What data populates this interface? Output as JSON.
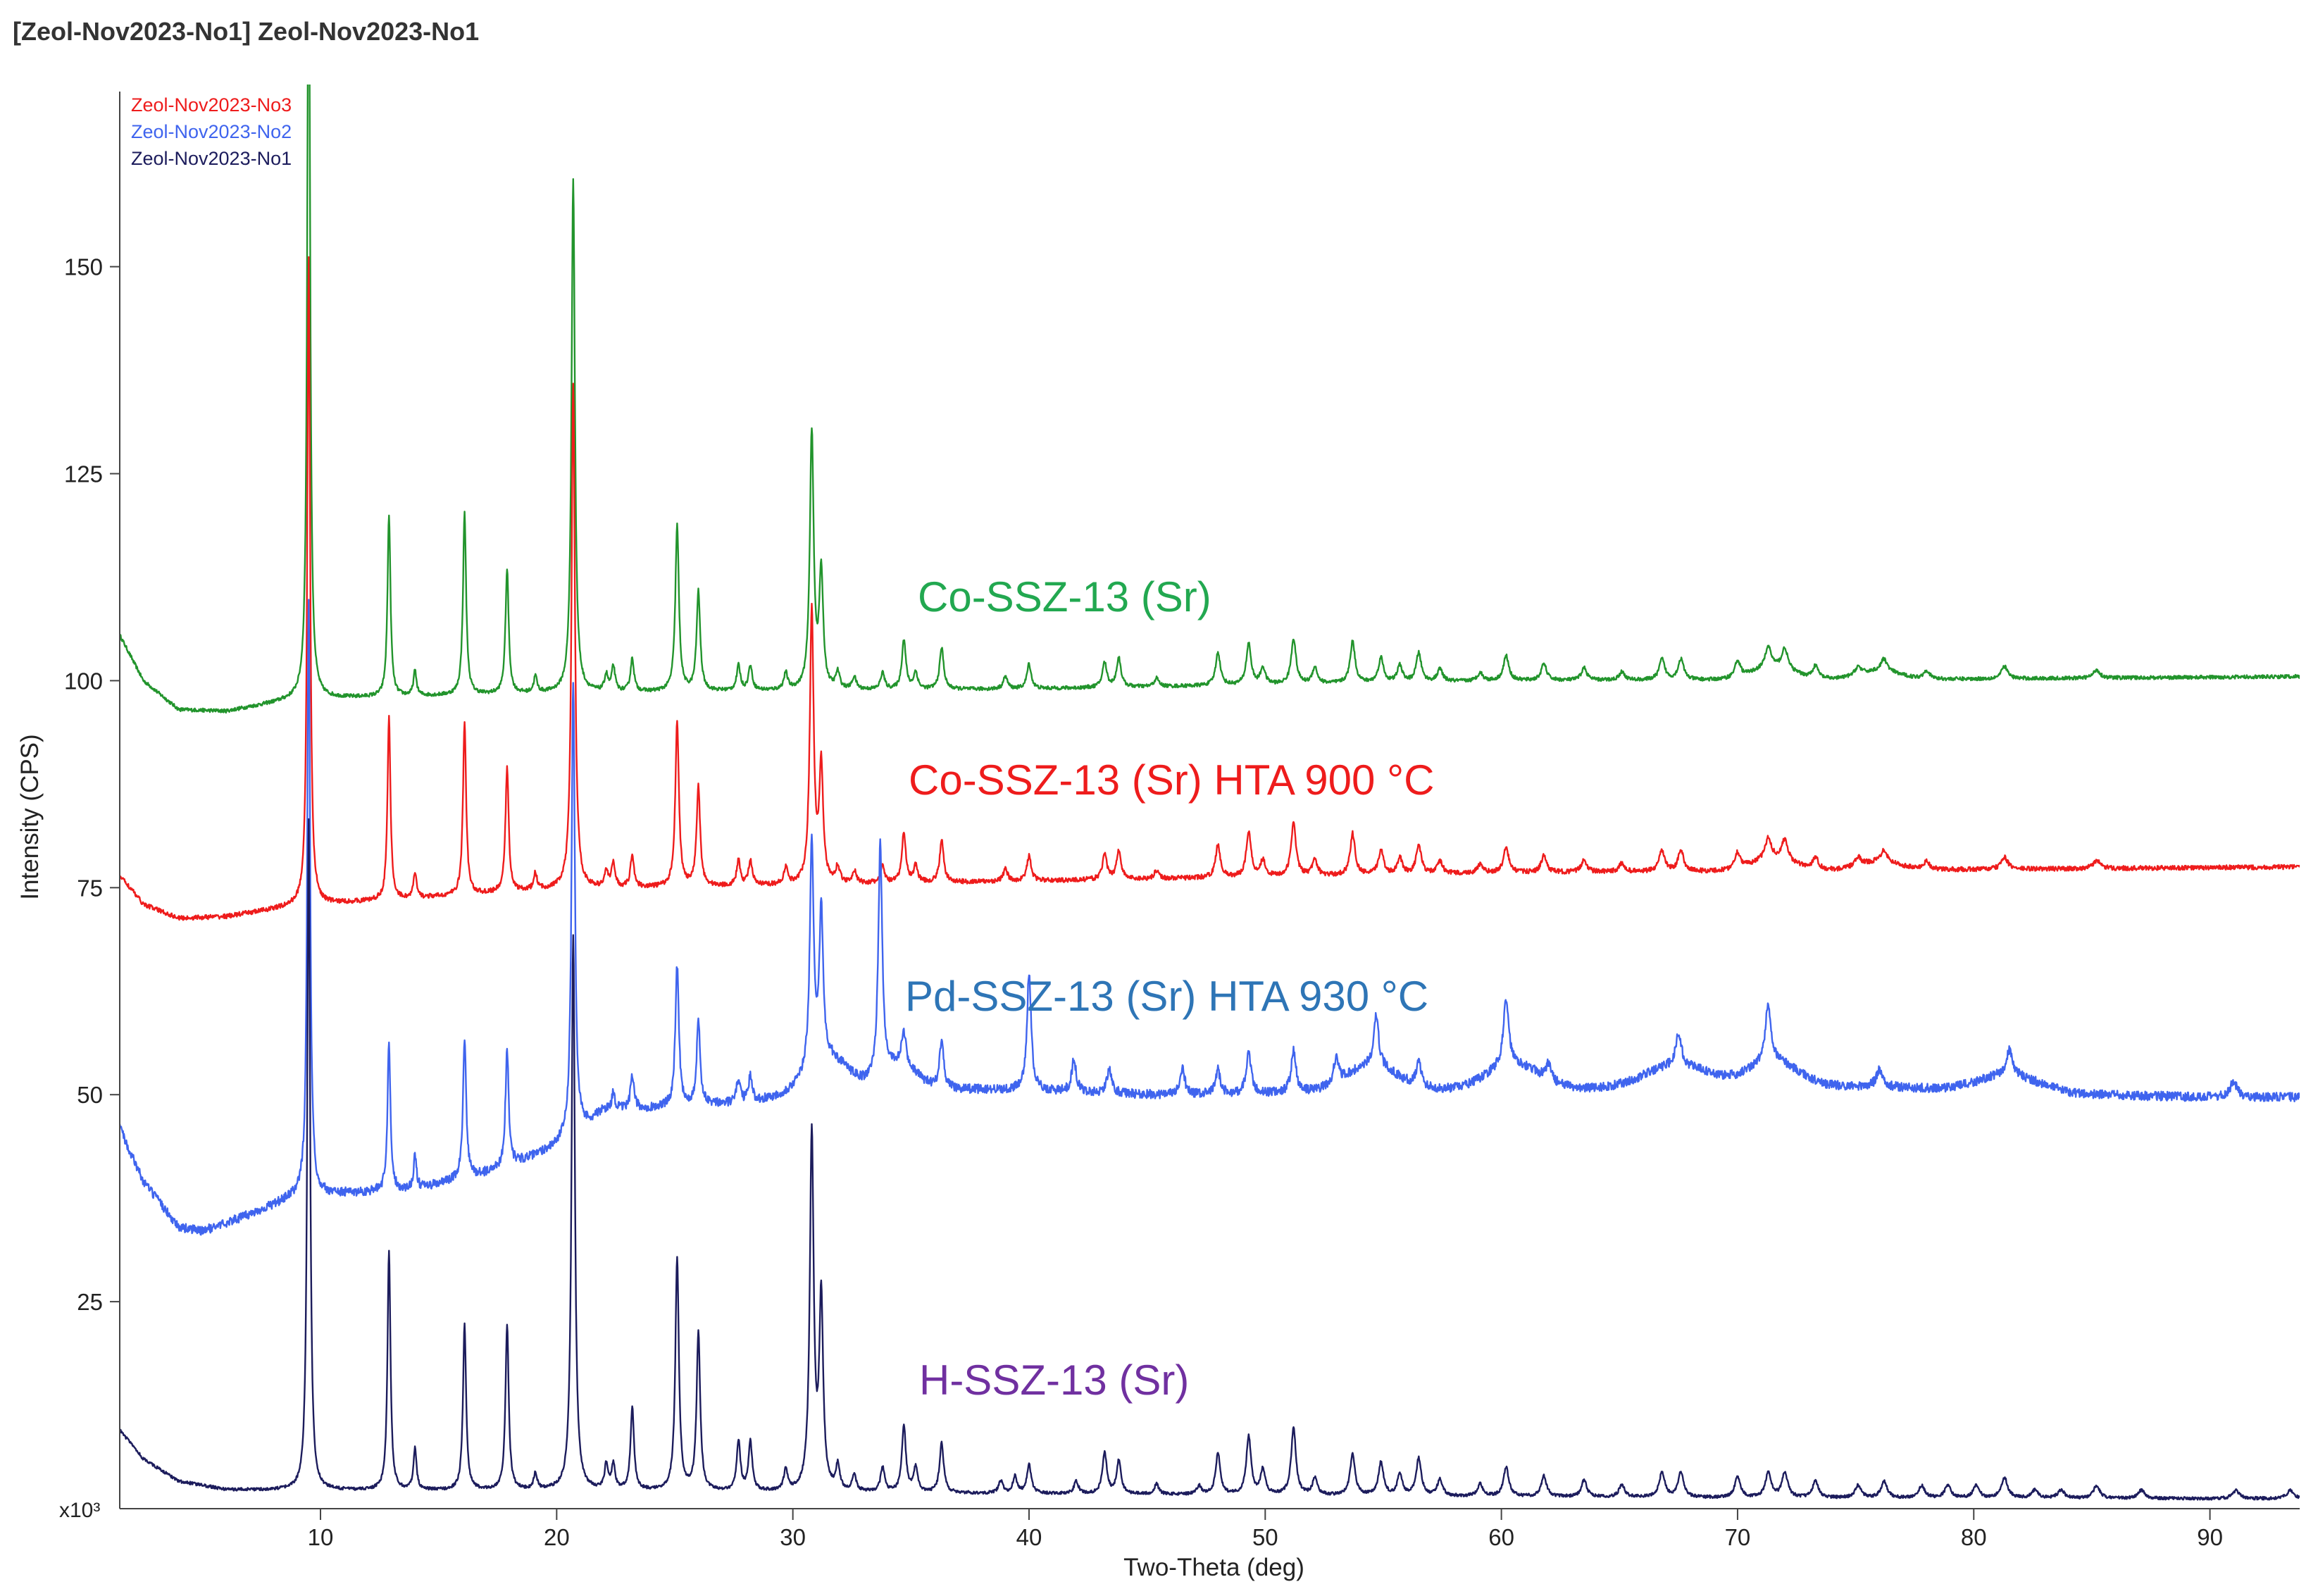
{
  "header": {
    "title": "[Zeol-Nov2023-No1] Zeol-Nov2023-No1"
  },
  "chart_data": {
    "type": "line",
    "xlabel": "Two-Theta (deg)",
    "ylabel": "Intensity (CPS)",
    "y_multiplier_label": "x10³",
    "xlim": [
      1.5,
      93.8
    ],
    "ylim": [
      0,
      172
    ],
    "grid": false,
    "legend_position": "top-left",
    "x_ticks": [
      10,
      20,
      30,
      40,
      50,
      60,
      70,
      80,
      90
    ],
    "y_ticks": [
      25,
      50,
      75,
      100,
      125,
      150
    ],
    "legend": [
      {
        "label": "Zeol-Nov2023-No3",
        "color": "#ee1c1c"
      },
      {
        "label": "Zeol-Nov2023-No2",
        "color": "#3f64ee"
      },
      {
        "label": "Zeol-Nov2023-No1",
        "color": "#1c1c5c"
      }
    ],
    "series": [
      {
        "name": "Zeol-Nov2023-No1",
        "annotation": "H-SSZ-13 (Sr)",
        "color": "#1c1c5c",
        "annotation_color": "#7030a0",
        "offset": 0,
        "baseline": [
          [
            1.5,
            9.5
          ],
          [
            2.5,
            6.0
          ],
          [
            4,
            3.3
          ],
          [
            6,
            2.3
          ],
          [
            9,
            2.2
          ],
          [
            20,
            2.2
          ],
          [
            40,
            1.8
          ],
          [
            70,
            1.3
          ],
          [
            93.8,
            1.2
          ]
        ],
        "peaks": [
          [
            9.5,
            81
          ],
          [
            12.9,
            29
          ],
          [
            14.0,
            5
          ],
          [
            16.1,
            20
          ],
          [
            17.9,
            20
          ],
          [
            19.1,
            2
          ],
          [
            20.7,
            67
          ],
          [
            22.1,
            3
          ],
          [
            22.4,
            3
          ],
          [
            23.2,
            10
          ],
          [
            25.1,
            28
          ],
          [
            26.0,
            19
          ],
          [
            27.7,
            6
          ],
          [
            28.2,
            6
          ],
          [
            29.7,
            2.5
          ],
          [
            30.8,
            43
          ],
          [
            31.2,
            23
          ],
          [
            31.9,
            3
          ],
          [
            32.6,
            2
          ],
          [
            33.8,
            3
          ],
          [
            34.7,
            8
          ],
          [
            35.2,
            3
          ],
          [
            36.3,
            6
          ],
          [
            38.8,
            1.5
          ],
          [
            39.4,
            2
          ],
          [
            40.0,
            3.5
          ],
          [
            42.0,
            1.5
          ],
          [
            43.2,
            5
          ],
          [
            43.8,
            4
          ],
          [
            45.4,
            1.2
          ],
          [
            47.2,
            1
          ],
          [
            48.0,
            5
          ],
          [
            49.3,
            7
          ],
          [
            49.9,
            3
          ],
          [
            51.2,
            8
          ],
          [
            52.1,
            2
          ],
          [
            53.7,
            5
          ],
          [
            54.9,
            4
          ],
          [
            55.7,
            2.5
          ],
          [
            56.5,
            4.5
          ],
          [
            57.4,
            2
          ],
          [
            59.1,
            1.5
          ],
          [
            60.2,
            3.5
          ],
          [
            61.8,
            2.5
          ],
          [
            63.5,
            2
          ],
          [
            65.1,
            1.5
          ],
          [
            66.8,
            3
          ],
          [
            67.6,
            3
          ],
          [
            70.0,
            2.5
          ],
          [
            71.3,
            3
          ],
          [
            72.0,
            3
          ],
          [
            73.3,
            2
          ],
          [
            75.1,
            1.5
          ],
          [
            76.2,
            2
          ],
          [
            77.8,
            1.5
          ],
          [
            78.9,
            1.5
          ],
          [
            80.1,
            1.5
          ],
          [
            81.3,
            2.5
          ],
          [
            82.6,
            1
          ],
          [
            83.7,
            1
          ],
          [
            85.2,
            1.5
          ],
          [
            87.1,
            1
          ],
          [
            91.1,
            1
          ],
          [
            93.4,
            1
          ]
        ]
      },
      {
        "name": "Zeol-Nov2023-No2",
        "annotation": "Pd-SSZ-13 (Sr) HTA 930 °C",
        "color": "#3f64ee",
        "annotation_color": "#2e75b6",
        "offset": 32.5,
        "baseline": [
          [
            1.5,
            13.5
          ],
          [
            2.5,
            7.0
          ],
          [
            4,
            1.5
          ],
          [
            5,
            1.0
          ],
          [
            7,
            3.0
          ],
          [
            9.2,
            5.5
          ],
          [
            10.5,
            5.5
          ],
          [
            14,
            6.0
          ],
          [
            17,
            8.0
          ],
          [
            19,
            10.0
          ],
          [
            20.5,
            12.0
          ],
          [
            22,
            15.5
          ],
          [
            25,
            16.0
          ],
          [
            28,
            16.5
          ],
          [
            30,
            17.5
          ],
          [
            33,
            18.0
          ],
          [
            36,
            18.2
          ],
          [
            40,
            18.0
          ],
          [
            45,
            17.5
          ],
          [
            48,
            17.5
          ],
          [
            52,
            17.8
          ],
          [
            55,
            18.0
          ],
          [
            60,
            18.2
          ],
          [
            64,
            18.2
          ],
          [
            68,
            18.0
          ],
          [
            72,
            18.5
          ],
          [
            76,
            18.5
          ],
          [
            80,
            18.0
          ],
          [
            85,
            17.5
          ],
          [
            90,
            17.2
          ],
          [
            93.8,
            17.2
          ]
        ],
        "peaks": [
          [
            9.5,
            72
          ],
          [
            12.9,
            18
          ],
          [
            14.0,
            4
          ],
          [
            16.1,
            17
          ],
          [
            17.9,
            14
          ],
          [
            20.7,
            55
          ],
          [
            22.4,
            2
          ],
          [
            23.2,
            4
          ],
          [
            25.1,
            17
          ],
          [
            26.0,
            10
          ],
          [
            27.7,
            3
          ],
          [
            28.2,
            3
          ],
          [
            30.8,
            27
          ],
          [
            31.2,
            18
          ],
          [
            33.7,
            28
          ],
          [
            34.7,
            4
          ],
          [
            36.3,
            6
          ],
          [
            40.0,
            14
          ],
          [
            41.9,
            4
          ],
          [
            43.4,
            3
          ],
          [
            46.5,
            3
          ],
          [
            48.0,
            3
          ],
          [
            49.3,
            5
          ],
          [
            51.2,
            5
          ],
          [
            53.0,
            3
          ],
          [
            54.7,
            6
          ],
          [
            56.5,
            3
          ],
          [
            60.2,
            8
          ],
          [
            62.0,
            2
          ],
          [
            67.5,
            4
          ],
          [
            71.3,
            7
          ],
          [
            76.0,
            2
          ],
          [
            81.5,
            3
          ],
          [
            91.0,
            2
          ]
        ],
        "broad": [
          [
            31.5,
            1.2,
            4
          ],
          [
            34.5,
            1.0,
            3
          ],
          [
            54.5,
            1.5,
            3
          ],
          [
            60.5,
            1.5,
            3
          ],
          [
            67.5,
            2.0,
            3
          ],
          [
            71.5,
            1.5,
            3
          ],
          [
            81.5,
            1.8,
            2
          ]
        ]
      },
      {
        "name": "Zeol-Nov2023-No3",
        "annotation": "Co-SSZ-13 (Sr) HTA 900 °C",
        "color": "#ee1c1c",
        "annotation_color": "#ee1c1c",
        "offset": 70,
        "baseline": [
          [
            1.5,
            6.5
          ],
          [
            2.5,
            3.0
          ],
          [
            4,
            1.3
          ],
          [
            6,
            1.5
          ],
          [
            9,
            2.8
          ],
          [
            20,
            4.8
          ],
          [
            30,
            5.3
          ],
          [
            40,
            5.8
          ],
          [
            60,
            6.8
          ],
          [
            80,
            7.2
          ],
          [
            93.8,
            7.5
          ]
        ],
        "peaks": [
          [
            9.5,
            78
          ],
          [
            12.9,
            22
          ],
          [
            14.0,
            3
          ],
          [
            16.1,
            21
          ],
          [
            17.9,
            15
          ],
          [
            19.1,
            2
          ],
          [
            20.7,
            61
          ],
          [
            22.1,
            2
          ],
          [
            22.4,
            3
          ],
          [
            23.2,
            4
          ],
          [
            25.1,
            20
          ],
          [
            26.0,
            12
          ],
          [
            27.7,
            3
          ],
          [
            28.2,
            3
          ],
          [
            29.7,
            2
          ],
          [
            30.8,
            33
          ],
          [
            31.2,
            14
          ],
          [
            31.9,
            2
          ],
          [
            32.6,
            1.5
          ],
          [
            33.8,
            2
          ],
          [
            34.7,
            6
          ],
          [
            35.2,
            2
          ],
          [
            36.3,
            5
          ],
          [
            39.0,
            1.5
          ],
          [
            40.0,
            3
          ],
          [
            43.2,
            3
          ],
          [
            43.8,
            3.5
          ],
          [
            45.4,
            1
          ],
          [
            48.0,
            4
          ],
          [
            49.3,
            5.5
          ],
          [
            49.9,
            2
          ],
          [
            51.2,
            6.5
          ],
          [
            52.1,
            2
          ],
          [
            53.7,
            5
          ],
          [
            54.9,
            3
          ],
          [
            55.7,
            2
          ],
          [
            56.5,
            3.5
          ],
          [
            57.4,
            1.5
          ],
          [
            59.1,
            1
          ],
          [
            60.2,
            3
          ],
          [
            61.8,
            2
          ],
          [
            63.5,
            1.5
          ],
          [
            65.1,
            1
          ],
          [
            66.8,
            2.5
          ],
          [
            67.6,
            2.5
          ],
          [
            70.0,
            2
          ],
          [
            71.3,
            2.5
          ],
          [
            72.0,
            2.5
          ],
          [
            73.3,
            1.5
          ],
          [
            75.1,
            1
          ],
          [
            76.2,
            1.5
          ],
          [
            78.0,
            1
          ],
          [
            81.3,
            1.5
          ],
          [
            85.2,
            1
          ]
        ],
        "broad": [
          [
            71.5,
            1.2,
            1.5
          ],
          [
            76.0,
            1.2,
            1
          ]
        ]
      },
      {
        "name": "",
        "annotation": "Co-SSZ-13 (Sr)",
        "color": "#22942c",
        "annotation_color": "#22a850",
        "offset": 95,
        "baseline": [
          [
            1.5,
            10.5
          ],
          [
            2.5,
            5.0
          ],
          [
            4,
            1.5
          ],
          [
            6,
            1.3
          ],
          [
            9,
            2.8
          ],
          [
            20,
            3.5
          ],
          [
            30,
            3.8
          ],
          [
            40,
            4.0
          ],
          [
            60,
            5.0
          ],
          [
            80,
            5.2
          ],
          [
            93.8,
            5.5
          ]
        ],
        "peaks": [
          [
            9.5,
            98
          ],
          [
            12.9,
            22
          ],
          [
            14.0,
            3
          ],
          [
            16.1,
            22
          ],
          [
            17.9,
            15
          ],
          [
            19.1,
            2
          ],
          [
            20.7,
            62
          ],
          [
            22.1,
            2
          ],
          [
            22.4,
            3
          ],
          [
            23.2,
            4
          ],
          [
            25.1,
            20
          ],
          [
            26.0,
            12
          ],
          [
            27.7,
            3
          ],
          [
            28.2,
            3
          ],
          [
            29.7,
            2
          ],
          [
            30.8,
            31
          ],
          [
            31.2,
            14
          ],
          [
            31.9,
            2
          ],
          [
            32.6,
            1.5
          ],
          [
            33.8,
            2
          ],
          [
            34.7,
            6
          ],
          [
            35.2,
            2
          ],
          [
            36.3,
            5
          ],
          [
            39.0,
            1.5
          ],
          [
            40.0,
            3
          ],
          [
            43.2,
            3
          ],
          [
            43.8,
            3.5
          ],
          [
            45.4,
            1
          ],
          [
            48.0,
            4
          ],
          [
            49.3,
            5
          ],
          [
            49.9,
            2
          ],
          [
            51.2,
            5.5
          ],
          [
            52.1,
            2
          ],
          [
            53.7,
            5
          ],
          [
            54.9,
            3
          ],
          [
            55.7,
            2
          ],
          [
            56.5,
            3.5
          ],
          [
            57.4,
            1.5
          ],
          [
            59.1,
            1
          ],
          [
            60.2,
            3
          ],
          [
            61.8,
            2
          ],
          [
            63.5,
            1.5
          ],
          [
            65.1,
            1
          ],
          [
            66.8,
            2.5
          ],
          [
            67.6,
            2.5
          ],
          [
            70.0,
            2
          ],
          [
            71.3,
            2.5
          ],
          [
            72.0,
            2.5
          ],
          [
            73.3,
            1.5
          ],
          [
            75.1,
            1
          ],
          [
            76.2,
            1.5
          ],
          [
            78.0,
            1
          ],
          [
            81.3,
            1.5
          ],
          [
            85.2,
            1
          ]
        ],
        "broad": [
          [
            71.5,
            1.2,
            1.5
          ],
          [
            76.0,
            1.2,
            1
          ]
        ]
      }
    ]
  }
}
